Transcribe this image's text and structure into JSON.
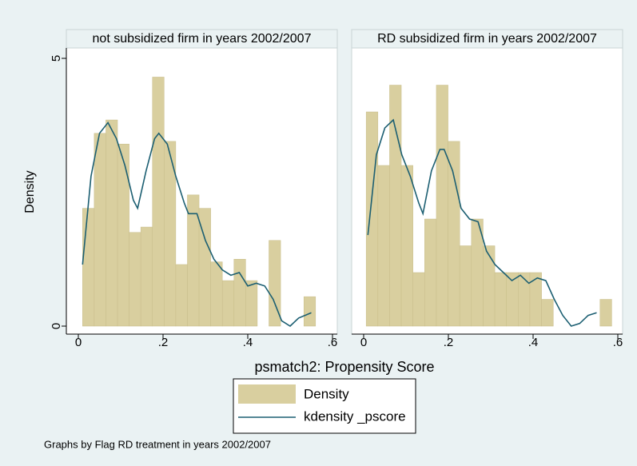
{
  "chart_data": [
    {
      "type": "histogram",
      "title": "not subsidized firm in years 2002/2007",
      "ylabel": "Density",
      "xlim": [
        0,
        0.6
      ],
      "ylim": [
        0,
        5
      ],
      "xticks": [
        0,
        {
          "value": 0.2,
          "label": ".2"
        },
        {
          "value": 0.4,
          "label": ".4"
        },
        {
          "value": 0.6,
          "label": ".6"
        }
      ],
      "yticks": [
        0,
        5
      ],
      "series": [
        {
          "name": "Density",
          "color": "#d9cf9f",
          "bins": [
            0.01,
            0.0375,
            0.065,
            0.0925,
            0.12,
            0.1475,
            0.175,
            0.2025,
            0.23,
            0.2575,
            0.285,
            0.3125,
            0.34,
            0.3675,
            0.395,
            0.4225,
            0.45,
            0.4775,
            0.505,
            0.5325,
            0.56
          ],
          "values": [
            2.2,
            3.6,
            3.85,
            3.4,
            1.75,
            1.85,
            4.65,
            3.45,
            1.15,
            2.45,
            2.2,
            1.2,
            0.85,
            1.25,
            0.85,
            0,
            1.6,
            0,
            0,
            0.55
          ]
        },
        {
          "name": "kdensity _pscore",
          "color": "#1c5f72",
          "x": [
            0.01,
            0.03,
            0.05,
            0.07,
            0.09,
            0.11,
            0.13,
            0.14,
            0.16,
            0.18,
            0.19,
            0.21,
            0.23,
            0.25,
            0.26,
            0.28,
            0.3,
            0.32,
            0.34,
            0.36,
            0.38,
            0.4,
            0.42,
            0.44,
            0.46,
            0.48,
            0.5,
            0.52,
            0.55
          ],
          "values": [
            1.15,
            2.8,
            3.6,
            3.8,
            3.5,
            3.0,
            2.35,
            2.2,
            2.9,
            3.5,
            3.6,
            3.4,
            2.8,
            2.3,
            2.1,
            2.1,
            1.6,
            1.25,
            1.05,
            0.95,
            1.0,
            0.75,
            0.8,
            0.75,
            0.5,
            0.1,
            0.0,
            0.15,
            0.25
          ]
        }
      ]
    },
    {
      "type": "histogram",
      "title": "RD subsidized firm in years 2002/2007",
      "xlim": [
        0,
        0.6
      ],
      "ylim": [
        0,
        5
      ],
      "xticks": [
        0,
        {
          "value": 0.2,
          "label": ".2"
        },
        {
          "value": 0.4,
          "label": ".4"
        },
        {
          "value": 0.6,
          "label": ".6"
        }
      ],
      "series": [
        {
          "name": "Density",
          "color": "#d9cf9f",
          "bins": [
            0.006,
            0.0336,
            0.0612,
            0.0888,
            0.1164,
            0.144,
            0.1716,
            0.1992,
            0.2268,
            0.2544,
            0.282,
            0.3096,
            0.3372,
            0.3648,
            0.3924,
            0.42,
            0.4476,
            0.4752,
            0.5028,
            0.5304,
            0.558,
            0.5856
          ],
          "values": [
            4,
            3,
            4.5,
            3,
            1,
            2,
            4.5,
            3.45,
            1.5,
            2,
            1.5,
            1,
            1,
            1,
            1,
            0.5,
            0,
            0,
            0,
            0,
            0.5
          ]
        },
        {
          "name": "kdensity _pscore",
          "color": "#1c5f72",
          "x": [
            0.01,
            0.03,
            0.05,
            0.07,
            0.09,
            0.11,
            0.13,
            0.14,
            0.16,
            0.18,
            0.19,
            0.21,
            0.23,
            0.25,
            0.27,
            0.29,
            0.31,
            0.33,
            0.35,
            0.37,
            0.39,
            0.41,
            0.43,
            0.45,
            0.47,
            0.49,
            0.51,
            0.53,
            0.55
          ],
          "values": [
            1.7,
            3.2,
            3.7,
            3.85,
            3.2,
            2.8,
            2.3,
            2.1,
            2.9,
            3.3,
            3.3,
            2.9,
            2.2,
            2.0,
            1.95,
            1.4,
            1.15,
            1.0,
            0.85,
            0.95,
            0.8,
            0.9,
            0.85,
            0.5,
            0.2,
            0.0,
            0.05,
            0.2,
            0.25
          ]
        }
      ]
    }
  ],
  "xlabel": "psmatch2: Propensity Score",
  "note": "Graphs by Flag RD treatment in years 2002/2007"
}
